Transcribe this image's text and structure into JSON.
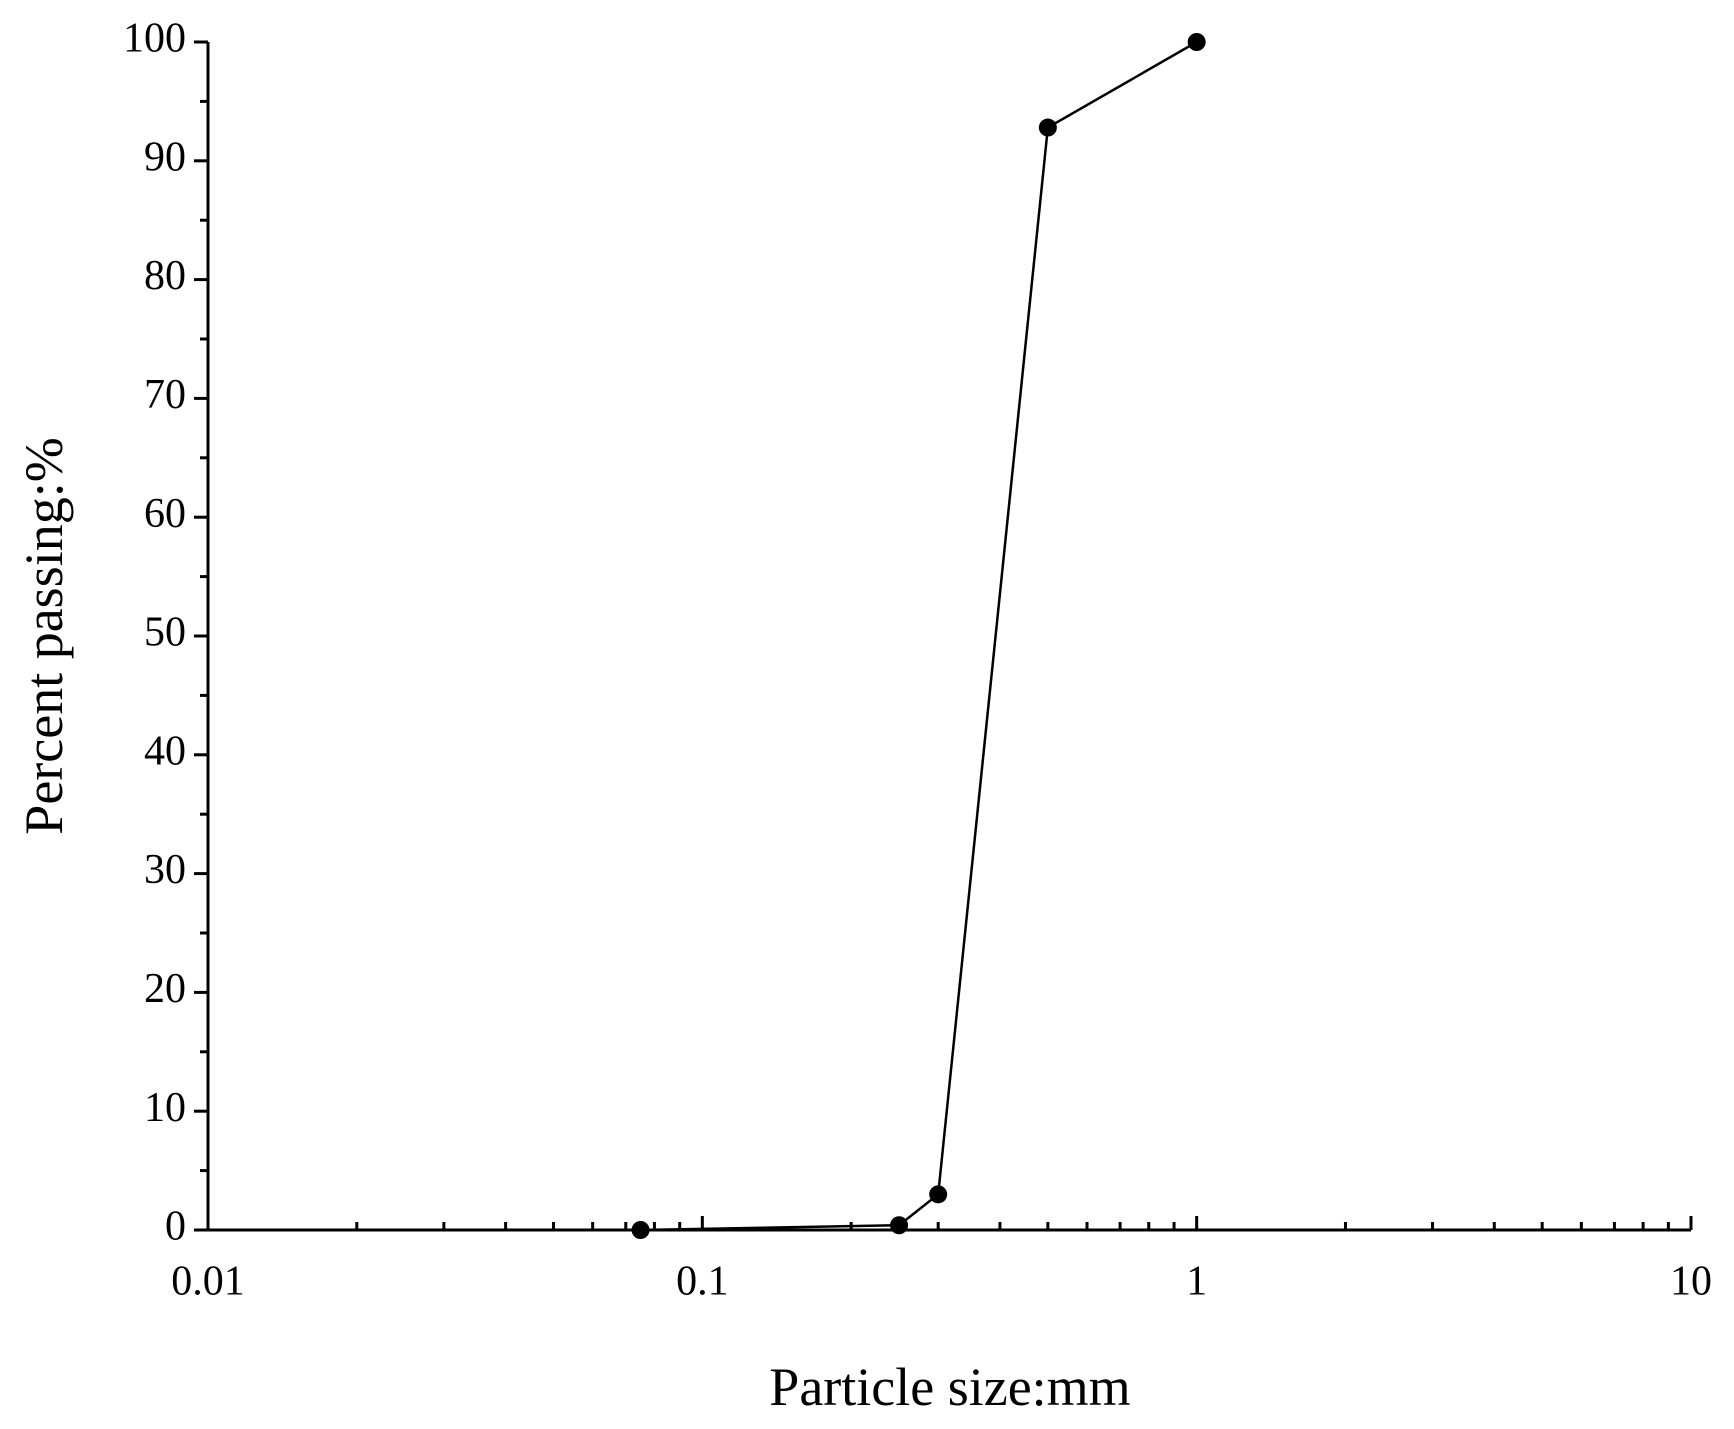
{
  "chart_data": {
    "type": "line",
    "x_label": "Particle size:mm",
    "y_label": "Percent passing:%",
    "x": [
      0.075,
      0.25,
      0.3,
      0.5,
      1
    ],
    "series": [
      {
        "color": "#000000",
        "values": [
          0,
          0.4,
          3,
          92.8,
          100
        ]
      }
    ],
    "x_log": true,
    "xlim": [
      0.01,
      10
    ],
    "xticks": [
      0.01,
      0.1,
      1,
      10
    ],
    "ylim": [
      0,
      100
    ],
    "yticks": [
      0,
      10,
      20,
      30,
      40,
      50,
      60,
      70,
      80,
      90,
      100
    ],
    "grid": false
  }
}
